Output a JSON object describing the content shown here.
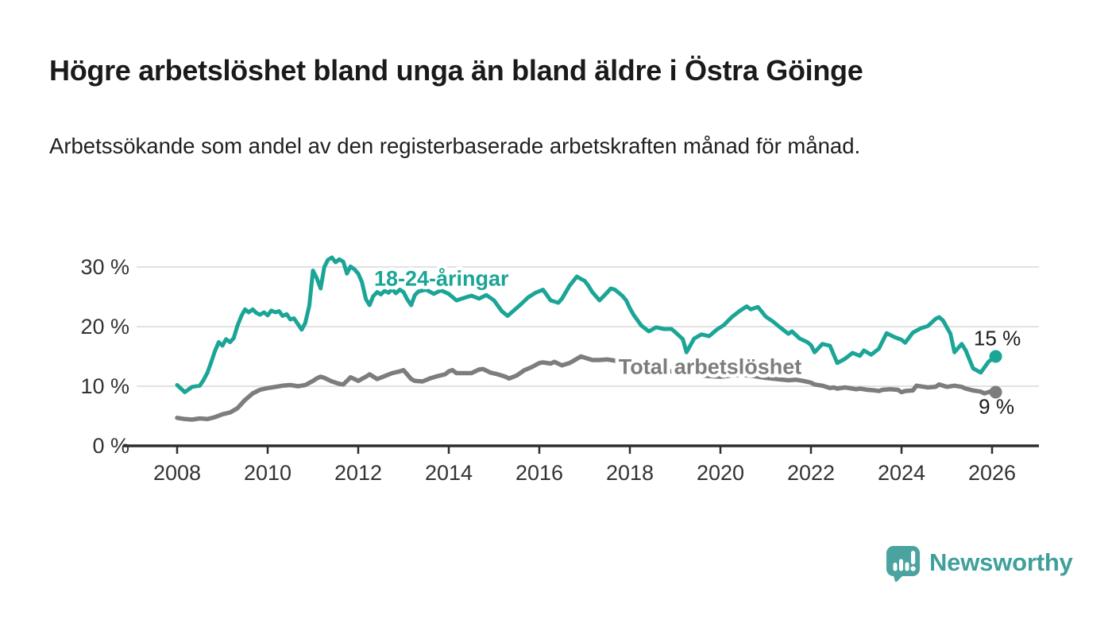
{
  "header": {
    "title": "Högre arbetslöshet bland unga än bland äldre i Östra Göinge",
    "subtitle": "Arbetssökande som andel av den registerbaserade arbetskraften månad för månad."
  },
  "footer": {
    "brand": "Newsworthy",
    "brand_color": "#3FA09B",
    "logo_icon": "bar-chart-speech-bubble-icon",
    "logo_color": "#4AA39E"
  },
  "chart_data": {
    "type": "line",
    "title": "Högre arbetslöshet bland unga än bland äldre i Östra Göinge",
    "xlabel": "",
    "ylabel": "",
    "x_axis": {
      "ticks": [
        2008,
        2010,
        2012,
        2014,
        2016,
        2018,
        2020,
        2022,
        2024,
        2026
      ],
      "range": [
        2006.8,
        2027.0
      ]
    },
    "y_axis": {
      "ticks": [
        0,
        10,
        20,
        30
      ],
      "tick_format": "{v} %",
      "range": [
        0,
        32
      ],
      "grid": true
    },
    "style": {
      "axis_color": "#333333",
      "grid_color": "#D8D8D8",
      "zero_line_color": "#2E2E2E",
      "end_label_color": "#1c1c1c"
    },
    "legend_position": "inline-labels",
    "series": [
      {
        "name": "18-24-åringar",
        "color": "#1AA596",
        "end_label": "15 %",
        "end_value": 15,
        "label_anchor": {
          "x": 2012.35,
          "y": 26.9
        },
        "points": [
          [
            2008.0,
            10.2
          ],
          [
            2008.17,
            9.0
          ],
          [
            2008.33,
            9.9
          ],
          [
            2008.5,
            10.1
          ],
          [
            2008.58,
            11.0
          ],
          [
            2008.67,
            12.3
          ],
          [
            2008.75,
            14.0
          ],
          [
            2008.83,
            15.8
          ],
          [
            2008.92,
            17.4
          ],
          [
            2009.0,
            16.8
          ],
          [
            2009.08,
            17.9
          ],
          [
            2009.17,
            17.4
          ],
          [
            2009.25,
            18.1
          ],
          [
            2009.33,
            20.1
          ],
          [
            2009.42,
            21.8
          ],
          [
            2009.5,
            22.9
          ],
          [
            2009.58,
            22.4
          ],
          [
            2009.67,
            22.9
          ],
          [
            2009.75,
            22.3
          ],
          [
            2009.83,
            22.0
          ],
          [
            2009.92,
            22.4
          ],
          [
            2010.0,
            21.9
          ],
          [
            2010.08,
            22.7
          ],
          [
            2010.17,
            22.4
          ],
          [
            2010.25,
            22.6
          ],
          [
            2010.33,
            21.8
          ],
          [
            2010.42,
            22.1
          ],
          [
            2010.5,
            21.2
          ],
          [
            2010.58,
            21.4
          ],
          [
            2010.67,
            20.4
          ],
          [
            2010.75,
            19.5
          ],
          [
            2010.83,
            20.6
          ],
          [
            2010.92,
            23.5
          ],
          [
            2011.0,
            29.4
          ],
          [
            2011.08,
            28.2
          ],
          [
            2011.17,
            26.4
          ],
          [
            2011.25,
            30.0
          ],
          [
            2011.33,
            31.2
          ],
          [
            2011.42,
            31.6
          ],
          [
            2011.5,
            30.8
          ],
          [
            2011.58,
            31.3
          ],
          [
            2011.67,
            30.9
          ],
          [
            2011.75,
            28.9
          ],
          [
            2011.83,
            30.1
          ],
          [
            2011.92,
            29.6
          ],
          [
            2012.0,
            28.9
          ],
          [
            2012.08,
            27.5
          ],
          [
            2012.17,
            24.6
          ],
          [
            2012.25,
            23.6
          ],
          [
            2012.33,
            25.1
          ],
          [
            2012.42,
            25.8
          ],
          [
            2012.5,
            25.4
          ],
          [
            2012.58,
            26.0
          ],
          [
            2012.67,
            25.7
          ],
          [
            2012.75,
            26.3
          ],
          [
            2012.83,
            25.6
          ],
          [
            2012.92,
            26.2
          ],
          [
            2013.0,
            25.8
          ],
          [
            2013.08,
            24.6
          ],
          [
            2013.17,
            23.6
          ],
          [
            2013.25,
            25.3
          ],
          [
            2013.33,
            25.9
          ],
          [
            2013.5,
            26.2
          ],
          [
            2013.67,
            25.5
          ],
          [
            2013.83,
            26.1
          ],
          [
            2014.0,
            25.5
          ],
          [
            2014.17,
            24.4
          ],
          [
            2014.33,
            24.8
          ],
          [
            2014.5,
            25.2
          ],
          [
            2014.67,
            24.7
          ],
          [
            2014.83,
            25.3
          ],
          [
            2015.0,
            24.4
          ],
          [
            2015.17,
            22.6
          ],
          [
            2015.3,
            21.8
          ],
          [
            2015.45,
            22.8
          ],
          [
            2015.6,
            23.8
          ],
          [
            2015.75,
            24.9
          ],
          [
            2015.92,
            25.7
          ],
          [
            2016.08,
            26.2
          ],
          [
            2016.25,
            24.4
          ],
          [
            2016.42,
            24.0
          ],
          [
            2016.5,
            24.7
          ],
          [
            2016.67,
            26.9
          ],
          [
            2016.83,
            28.4
          ],
          [
            2016.92,
            28.0
          ],
          [
            2017.0,
            27.7
          ],
          [
            2017.08,
            26.9
          ],
          [
            2017.17,
            25.8
          ],
          [
            2017.33,
            24.4
          ],
          [
            2017.42,
            25.1
          ],
          [
            2017.58,
            26.4
          ],
          [
            2017.67,
            26.2
          ],
          [
            2017.83,
            25.2
          ],
          [
            2017.92,
            24.4
          ],
          [
            2018.0,
            23.1
          ],
          [
            2018.08,
            22.0
          ],
          [
            2018.25,
            20.2
          ],
          [
            2018.42,
            19.2
          ],
          [
            2018.58,
            19.9
          ],
          [
            2018.75,
            19.6
          ],
          [
            2018.92,
            19.6
          ],
          [
            2019.0,
            19.1
          ],
          [
            2019.17,
            17.9
          ],
          [
            2019.25,
            15.7
          ],
          [
            2019.42,
            18.0
          ],
          [
            2019.58,
            18.7
          ],
          [
            2019.75,
            18.4
          ],
          [
            2019.92,
            19.5
          ],
          [
            2020.08,
            20.3
          ],
          [
            2020.25,
            21.6
          ],
          [
            2020.42,
            22.6
          ],
          [
            2020.58,
            23.4
          ],
          [
            2020.67,
            22.9
          ],
          [
            2020.83,
            23.3
          ],
          [
            2021.0,
            21.7
          ],
          [
            2021.17,
            20.8
          ],
          [
            2021.33,
            19.8
          ],
          [
            2021.5,
            18.8
          ],
          [
            2021.58,
            19.2
          ],
          [
            2021.75,
            18.0
          ],
          [
            2021.92,
            17.4
          ],
          [
            2022.0,
            16.9
          ],
          [
            2022.08,
            15.7
          ],
          [
            2022.25,
            17.1
          ],
          [
            2022.42,
            16.8
          ],
          [
            2022.58,
            13.9
          ],
          [
            2022.75,
            14.6
          ],
          [
            2022.92,
            15.6
          ],
          [
            2023.08,
            15.1
          ],
          [
            2023.17,
            16.0
          ],
          [
            2023.33,
            15.3
          ],
          [
            2023.5,
            16.3
          ],
          [
            2023.67,
            18.9
          ],
          [
            2023.83,
            18.3
          ],
          [
            2024.0,
            17.8
          ],
          [
            2024.08,
            17.3
          ],
          [
            2024.25,
            19.0
          ],
          [
            2024.42,
            19.7
          ],
          [
            2024.58,
            20.1
          ],
          [
            2024.75,
            21.3
          ],
          [
            2024.83,
            21.6
          ],
          [
            2024.92,
            21.0
          ],
          [
            2025.08,
            18.8
          ],
          [
            2025.17,
            15.7
          ],
          [
            2025.33,
            17.1
          ],
          [
            2025.42,
            16.0
          ],
          [
            2025.58,
            13.0
          ],
          [
            2025.75,
            12.3
          ],
          [
            2025.92,
            14.1
          ],
          [
            2026.08,
            15.0
          ]
        ]
      },
      {
        "name": "Total arbetslöshet",
        "color": "#7D7D7D",
        "end_label": "9 %",
        "end_value": 9,
        "label_anchor": {
          "x": 2017.75,
          "y": 12.1
        },
        "points": [
          [
            2008.0,
            4.7
          ],
          [
            2008.17,
            4.5
          ],
          [
            2008.33,
            4.4
          ],
          [
            2008.5,
            4.6
          ],
          [
            2008.67,
            4.5
          ],
          [
            2008.83,
            4.8
          ],
          [
            2009.0,
            5.3
          ],
          [
            2009.17,
            5.6
          ],
          [
            2009.33,
            6.3
          ],
          [
            2009.5,
            7.7
          ],
          [
            2009.67,
            8.8
          ],
          [
            2009.83,
            9.4
          ],
          [
            2010.0,
            9.7
          ],
          [
            2010.17,
            9.9
          ],
          [
            2010.33,
            10.1
          ],
          [
            2010.5,
            10.2
          ],
          [
            2010.67,
            10.0
          ],
          [
            2010.83,
            10.2
          ],
          [
            2011.0,
            10.9
          ],
          [
            2011.08,
            11.3
          ],
          [
            2011.17,
            11.6
          ],
          [
            2011.25,
            11.4
          ],
          [
            2011.42,
            10.8
          ],
          [
            2011.58,
            10.4
          ],
          [
            2011.67,
            10.3
          ],
          [
            2011.75,
            10.9
          ],
          [
            2011.83,
            11.5
          ],
          [
            2011.92,
            11.2
          ],
          [
            2012.0,
            10.9
          ],
          [
            2012.17,
            11.6
          ],
          [
            2012.25,
            12.0
          ],
          [
            2012.42,
            11.2
          ],
          [
            2012.58,
            11.7
          ],
          [
            2012.75,
            12.2
          ],
          [
            2012.92,
            12.5
          ],
          [
            2013.0,
            12.7
          ],
          [
            2013.08,
            12.0
          ],
          [
            2013.17,
            11.2
          ],
          [
            2013.25,
            10.9
          ],
          [
            2013.42,
            10.8
          ],
          [
            2013.58,
            11.3
          ],
          [
            2013.75,
            11.7
          ],
          [
            2013.92,
            12.0
          ],
          [
            2014.0,
            12.5
          ],
          [
            2014.08,
            12.7
          ],
          [
            2014.17,
            12.2
          ],
          [
            2014.33,
            12.2
          ],
          [
            2014.5,
            12.2
          ],
          [
            2014.67,
            12.8
          ],
          [
            2014.75,
            12.9
          ],
          [
            2014.92,
            12.3
          ],
          [
            2015.08,
            12.0
          ],
          [
            2015.25,
            11.6
          ],
          [
            2015.33,
            11.3
          ],
          [
            2015.5,
            11.8
          ],
          [
            2015.67,
            12.7
          ],
          [
            2015.83,
            13.2
          ],
          [
            2016.0,
            13.9
          ],
          [
            2016.08,
            14.0
          ],
          [
            2016.25,
            13.8
          ],
          [
            2016.33,
            14.1
          ],
          [
            2016.5,
            13.5
          ],
          [
            2016.67,
            13.9
          ],
          [
            2016.83,
            14.6
          ],
          [
            2016.92,
            15.0
          ],
          [
            2017.0,
            14.8
          ],
          [
            2017.17,
            14.4
          ],
          [
            2017.33,
            14.4
          ],
          [
            2017.5,
            14.5
          ],
          [
            2017.58,
            14.4
          ],
          [
            2017.75,
            14.2
          ],
          [
            2018.0,
            13.8
          ],
          [
            2018.25,
            13.4
          ],
          [
            2018.5,
            13.0
          ],
          [
            2018.75,
            12.7
          ],
          [
            2019.0,
            12.4
          ],
          [
            2019.25,
            12.1
          ],
          [
            2019.5,
            11.9
          ],
          [
            2019.75,
            11.7
          ],
          [
            2020.0,
            11.6
          ],
          [
            2020.25,
            11.8
          ],
          [
            2020.5,
            11.9
          ],
          [
            2020.75,
            11.7
          ],
          [
            2021.0,
            11.4
          ],
          [
            2021.25,
            11.2
          ],
          [
            2021.5,
            11.0
          ],
          [
            2021.67,
            11.1
          ],
          [
            2021.83,
            10.9
          ],
          [
            2022.0,
            10.6
          ],
          [
            2022.08,
            10.3
          ],
          [
            2022.25,
            10.1
          ],
          [
            2022.42,
            9.7
          ],
          [
            2022.5,
            9.8
          ],
          [
            2022.58,
            9.6
          ],
          [
            2022.75,
            9.8
          ],
          [
            2022.92,
            9.6
          ],
          [
            2023.0,
            9.5
          ],
          [
            2023.08,
            9.6
          ],
          [
            2023.25,
            9.4
          ],
          [
            2023.42,
            9.3
          ],
          [
            2023.5,
            9.2
          ],
          [
            2023.58,
            9.4
          ],
          [
            2023.75,
            9.5
          ],
          [
            2023.92,
            9.4
          ],
          [
            2024.0,
            9.0
          ],
          [
            2024.08,
            9.2
          ],
          [
            2024.25,
            9.3
          ],
          [
            2024.33,
            10.1
          ],
          [
            2024.5,
            9.9
          ],
          [
            2024.58,
            9.8
          ],
          [
            2024.75,
            9.9
          ],
          [
            2024.83,
            10.3
          ],
          [
            2025.0,
            9.9
          ],
          [
            2025.17,
            10.1
          ],
          [
            2025.33,
            9.9
          ],
          [
            2025.42,
            9.6
          ],
          [
            2025.58,
            9.3
          ],
          [
            2025.75,
            9.1
          ],
          [
            2025.83,
            8.8
          ],
          [
            2026.0,
            9.2
          ],
          [
            2026.08,
            9.0
          ]
        ]
      }
    ]
  }
}
